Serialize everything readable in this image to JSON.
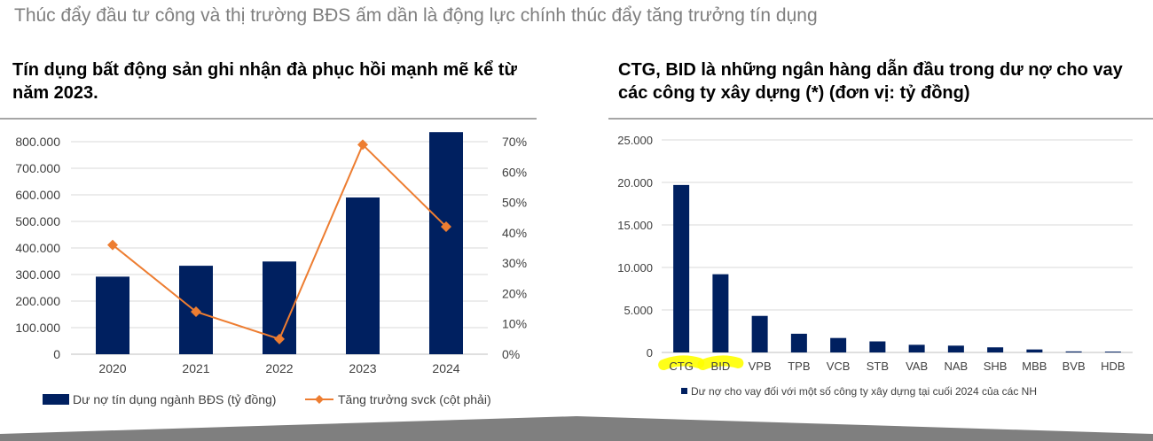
{
  "header": {
    "title": "Thúc đẩy đầu tư công và thị trường BĐS ấm dần là động lực chính thúc đẩy tăng trưởng tín dụng"
  },
  "colors": {
    "bar": "#002060",
    "line": "#ED7D31",
    "highlight": "#FFFF00",
    "footer": "#7f7f7f"
  },
  "chart_data": [
    {
      "type": "bar",
      "title": "Tín dụng bất động sản ghi nhận đà phục hồi mạnh mẽ kể từ năm 2023.",
      "categories": [
        "2020",
        "2021",
        "2022",
        "2023",
        "2024"
      ],
      "series": [
        {
          "name": "Dư nợ tín dụng ngành BĐS (tỷ đồng)",
          "type": "bar",
          "axis": "left",
          "values": [
            292000,
            333000,
            349000,
            590000,
            836000
          ]
        },
        {
          "name": "Tăng trưởng svck (cột phải)",
          "type": "line",
          "axis": "right",
          "values": [
            36,
            14,
            5,
            69,
            42
          ]
        }
      ],
      "ylim": [
        0,
        800000
      ],
      "yticks": [
        "0",
        "100.000",
        "200.000",
        "300.000",
        "400.000",
        "500.000",
        "600.000",
        "700.000",
        "800.000"
      ],
      "y2lim": [
        0,
        70
      ],
      "y2ticks": [
        "0%",
        "10%",
        "20%",
        "30%",
        "40%",
        "50%",
        "60%",
        "70%"
      ],
      "legend": "bottom"
    },
    {
      "type": "bar",
      "title": "CTG, BID là những ngân hàng dẫn đầu trong dư nợ cho vay các công ty xây dựng (*) (đơn vị: tỷ đồng)",
      "categories": [
        "CTG",
        "BID",
        "VPB",
        "TPB",
        "VCB",
        "STB",
        "VAB",
        "NAB",
        "SHB",
        "MBB",
        "BVB",
        "HDB"
      ],
      "highlighted": [
        "CTG",
        "BID"
      ],
      "series": [
        {
          "name": "Dư nợ cho vay đối với một số công ty xây dựng tại cuối 2024 của các NH",
          "values": [
            19700,
            9200,
            4300,
            2200,
            1700,
            1300,
            900,
            800,
            600,
            350,
            120,
            100
          ]
        }
      ],
      "ylim": [
        0,
        25000
      ],
      "yticks": [
        "0",
        "5.000",
        "10.000",
        "15.000",
        "20.000",
        "25.000"
      ],
      "legend": "bottom"
    }
  ]
}
